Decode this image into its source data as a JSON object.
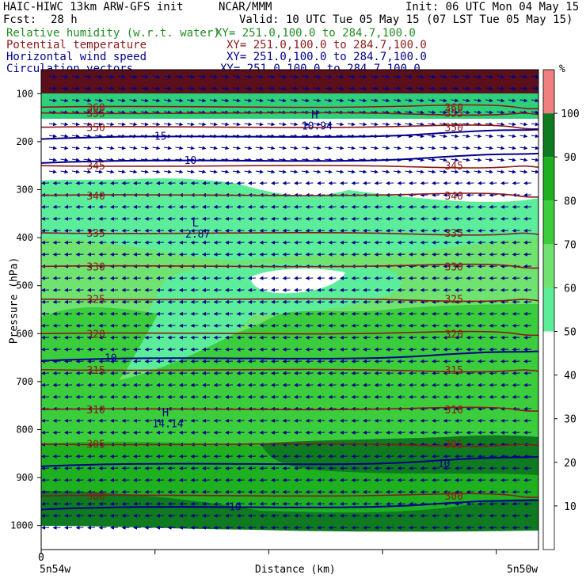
{
  "header": {
    "line1_left": "HAIC-HIWC 13km ARW-GFS init",
    "line1_mid": "NCAR/MMM",
    "line1_right": "Init: 06 UTC Mon 04 May 15",
    "fcst_label": "Fcst:",
    "fcst_value": "28 h",
    "valid": "Valid: 10 UTC Tue 05 May 15 (07 LST Tue 05 May 15)",
    "fields": [
      {
        "name": "Relative humidity (w.r.t. water)",
        "xy": "XY= 251.0,100.0 to 284.7,100.0",
        "color": "#228b22"
      },
      {
        "name": "Potential temperature",
        "xy": "XY= 251.0,100.0 to 284.7,100.0",
        "color": "#8b1a1a"
      },
      {
        "name": "Horizontal wind speed",
        "xy": "XY= 251.0,100.0 to 284.7,100.0",
        "color": "#00008b"
      },
      {
        "name": "Circulation vectors",
        "xy": "XY= 251.0,100.0 to 284.7,100.0",
        "color": "#00008b"
      }
    ]
  },
  "chart_data": {
    "type": "heatmap",
    "ylabel": "Pressure (hPa)",
    "xlabel": "Distance (km)",
    "x_start_label": "5n54w",
    "x_end_label": "5n50w",
    "x_zero_tick": "0",
    "yticks": [
      100,
      200,
      300,
      400,
      500,
      600,
      700,
      800,
      900,
      1000
    ],
    "ylim": [
      1050,
      50
    ],
    "colorbar": {
      "unit": "%",
      "ticks": [
        10,
        20,
        30,
        40,
        50,
        60,
        70,
        80,
        90,
        100
      ],
      "bins": [
        {
          "range": [
            0,
            50
          ],
          "color": "#ffffff"
        },
        {
          "range": [
            50,
            60
          ],
          "color": "#5ced9a"
        },
        {
          "range": [
            60,
            70
          ],
          "color": "#6fe26f"
        },
        {
          "range": [
            70,
            80
          ],
          "color": "#3ccd3c"
        },
        {
          "range": [
            80,
            90
          ],
          "color": "#1fb01f"
        },
        {
          "range": [
            90,
            100
          ],
          "color": "#0f7a1f"
        },
        {
          "range": [
            100,
            110
          ],
          "color": "#f08080"
        }
      ]
    },
    "theta_contours": [
      {
        "label": "360",
        "p": 128
      },
      {
        "label": "355",
        "p": 140
      },
      {
        "label": "350",
        "p": 170
      },
      {
        "label": "345",
        "p": 250
      },
      {
        "label": "340",
        "p": 312
      },
      {
        "label": "335",
        "p": 390
      },
      {
        "label": "330",
        "p": 460
      },
      {
        "label": "325",
        "p": 528
      },
      {
        "label": "320",
        "p": 600
      },
      {
        "label": "315",
        "p": 675
      },
      {
        "label": "310",
        "p": 758
      },
      {
        "label": "305",
        "p": 830
      },
      {
        "label": "300",
        "p": 938
      }
    ],
    "wind_contours": [
      {
        "label": "15",
        "p": 188
      },
      {
        "label": "10",
        "p": 238
      },
      {
        "label": "10",
        "p": 650
      },
      {
        "label": "10",
        "p": 870
      },
      {
        "label": "10",
        "p": 960
      }
    ],
    "annotations": [
      {
        "text": "H",
        "sub": "10.94",
        "x_frac": 0.55,
        "p": 165
      },
      {
        "text": "L",
        "sub": "2.87",
        "x_frac": 0.31,
        "p": 390
      },
      {
        "text": "H",
        "sub": "14.14",
        "x_frac": 0.25,
        "p": 785
      }
    ]
  }
}
